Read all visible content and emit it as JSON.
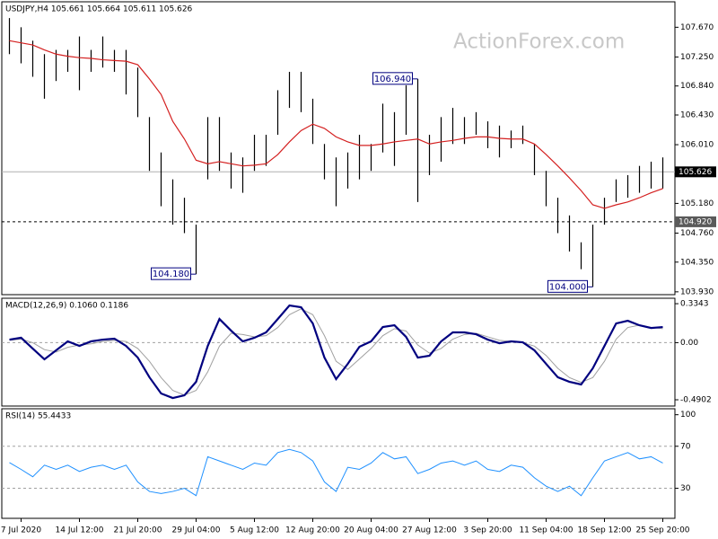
{
  "chart_data": [
    {
      "type": "ohlc",
      "title": "USDJPY,H4  105.661 105.664 105.611 105.626",
      "watermark": "ActionForex.com",
      "color": "#000000",
      "categories": [
        null,
        "7 Jul 2020",
        null,
        null,
        null,
        null,
        "14 Jul 12:00",
        null,
        null,
        null,
        null,
        "21 Jul 20:00",
        null,
        null,
        null,
        null,
        "29 Jul 04:00",
        null,
        null,
        null,
        null,
        "5 Aug 12:00",
        null,
        null,
        null,
        null,
        "12 Aug 20:00",
        null,
        null,
        null,
        null,
        "20 Aug 04:00",
        null,
        null,
        null,
        null,
        "27 Aug 12:00",
        null,
        null,
        null,
        null,
        "3 Sep 20:00",
        null,
        null,
        null,
        null,
        "11 Sep 04:00",
        null,
        null,
        null,
        null,
        "18 Sep 12:00",
        null,
        null,
        null,
        null,
        "25 Sep 20:00"
      ],
      "high": [
        107.8,
        107.67,
        107.48,
        107.29,
        107.35,
        107.35,
        107.54,
        107.35,
        107.54,
        107.35,
        107.35,
        107.1,
        106.4,
        105.9,
        105.52,
        105.26,
        104.88,
        106.4,
        106.4,
        105.9,
        105.83,
        106.15,
        106.15,
        106.78,
        107.04,
        107.04,
        106.66,
        106.02,
        105.83,
        105.9,
        106.15,
        106.02,
        106.59,
        106.47,
        106.85,
        106.94,
        106.15,
        106.4,
        106.53,
        106.4,
        106.47,
        106.34,
        106.28,
        106.21,
        106.28,
        106.02,
        105.64,
        105.26,
        105.01,
        104.63,
        104.88,
        105.26,
        105.52,
        105.58,
        105.71,
        105.77,
        105.83
      ],
      "low": [
        107.29,
        107.16,
        106.97,
        106.66,
        106.91,
        107.04,
        106.78,
        107.04,
        107.1,
        107.04,
        106.72,
        106.4,
        105.64,
        105.14,
        104.88,
        104.76,
        104.18,
        105.52,
        105.64,
        105.39,
        105.33,
        105.64,
        105.71,
        106.15,
        106.53,
        106.47,
        106.02,
        105.52,
        105.14,
        105.39,
        105.52,
        105.64,
        105.9,
        105.71,
        106.15,
        105.2,
        105.58,
        105.77,
        106.02,
        106.02,
        106.15,
        105.96,
        105.83,
        105.96,
        106.02,
        105.58,
        105.14,
        104.76,
        104.5,
        104.25,
        104.0,
        104.88,
        105.2,
        105.26,
        105.33,
        105.39,
        105.39
      ],
      "ma": {
        "color": "#d42020",
        "values": [
          107.48,
          107.45,
          107.42,
          107.35,
          107.29,
          107.26,
          107.24,
          107.23,
          107.21,
          107.2,
          107.19,
          107.14,
          106.94,
          106.72,
          106.34,
          106.09,
          105.79,
          105.74,
          105.77,
          105.74,
          105.71,
          105.72,
          105.74,
          105.87,
          106.05,
          106.21,
          106.3,
          106.24,
          106.12,
          106.05,
          106.0,
          106.0,
          106.02,
          106.05,
          106.07,
          106.09,
          106.02,
          106.05,
          106.07,
          106.1,
          106.12,
          106.12,
          106.1,
          106.09,
          106.09,
          106.02,
          105.87,
          105.71,
          105.54,
          105.36,
          105.16,
          105.11,
          105.16,
          105.2,
          105.26,
          105.33,
          105.39
        ]
      },
      "ylim": [
        103.89,
        108.03
      ],
      "yticks": [
        {
          "value": 107.67,
          "label": "107.670"
        },
        {
          "value": 107.25,
          "label": "107.250"
        },
        {
          "value": 106.84,
          "label": "106.840"
        },
        {
          "value": 106.43,
          "label": "106.430"
        },
        {
          "value": 106.01,
          "label": "106.010"
        },
        {
          "value": 105.18,
          "label": "105.180"
        },
        {
          "value": 104.76,
          "label": "104.760"
        },
        {
          "value": 104.35,
          "label": "104.350"
        },
        {
          "value": 103.93,
          "label": "103.930"
        }
      ],
      "last_price": {
        "value": 105.626,
        "label": "105.626"
      },
      "level": {
        "value": 104.92,
        "label": "104.920"
      },
      "annotations": [
        {
          "value": 106.94,
          "label": "106.940"
        },
        {
          "value": 104.18,
          "label": "104.180"
        },
        {
          "value": 104.0,
          "label": "104.000"
        }
      ]
    },
    {
      "type": "macd",
      "title": "MACD(12,26,9) 0.1060 0.1186",
      "series": [
        {
          "color": "#00007f",
          "values": [
            0.026,
            0.042,
            -0.051,
            -0.143,
            -0.066,
            0.011,
            -0.028,
            0.011,
            0.026,
            0.034,
            -0.028,
            -0.128,
            -0.297,
            -0.436,
            -0.475,
            -0.452,
            -0.336,
            -0.028,
            0.203,
            0.103,
            0.011,
            0.042,
            0.088,
            0.203,
            0.319,
            0.304,
            0.165,
            -0.128,
            -0.313,
            -0.182,
            -0.035,
            0.011,
            0.134,
            0.149,
            0.049,
            -0.128,
            -0.112,
            0.011,
            0.088,
            0.088,
            0.072,
            0.026,
            -0.005,
            0.011,
            0.003,
            -0.066,
            -0.182,
            -0.297,
            -0.336,
            -0.359,
            -0.22,
            -0.028,
            0.165,
            0.188,
            0.149,
            0.126,
            0.134
          ]
        },
        {
          "color": "#a0a0a0",
          "values": [
            0.02,
            0.03,
            0.0,
            -0.06,
            -0.08,
            -0.04,
            -0.02,
            -0.01,
            0.01,
            0.02,
            0.01,
            -0.05,
            -0.16,
            -0.3,
            -0.41,
            -0.45,
            -0.41,
            -0.25,
            -0.03,
            0.08,
            0.07,
            0.05,
            0.06,
            0.13,
            0.24,
            0.29,
            0.24,
            0.06,
            -0.16,
            -0.23,
            -0.14,
            -0.05,
            0.06,
            0.12,
            0.1,
            -0.02,
            -0.09,
            -0.05,
            0.03,
            0.07,
            0.08,
            0.05,
            0.02,
            0.01,
            0.0,
            -0.03,
            -0.11,
            -0.22,
            -0.3,
            -0.34,
            -0.3,
            -0.16,
            0.03,
            0.13,
            0.15,
            0.13,
            0.12
          ]
        }
      ],
      "ylim": [
        -0.544,
        0.381
      ],
      "yticks": [
        0.3343,
        {
          "value": 0,
          "label": "0.00"
        },
        -0.4902
      ],
      "levels": [
        0
      ]
    },
    {
      "type": "line",
      "title": "RSI(14) 55.4433",
      "color": "#1e90ff",
      "values": [
        54.5,
        48,
        41,
        52,
        48,
        52,
        46,
        50,
        52,
        48,
        52,
        36,
        27,
        25,
        27,
        30,
        23,
        60,
        56,
        52,
        48,
        54,
        52,
        64,
        67,
        64,
        56,
        36,
        27,
        50,
        48,
        54,
        64,
        58,
        60,
        44,
        48,
        54,
        56,
        52,
        56,
        48,
        46,
        52,
        50,
        40,
        32,
        27,
        32,
        23,
        40,
        56,
        60,
        64,
        58,
        60,
        54
      ],
      "ylim": [
        1.4,
        105.7
      ],
      "yticks": [
        100,
        70,
        30
      ],
      "levels": [
        70,
        30
      ]
    }
  ]
}
